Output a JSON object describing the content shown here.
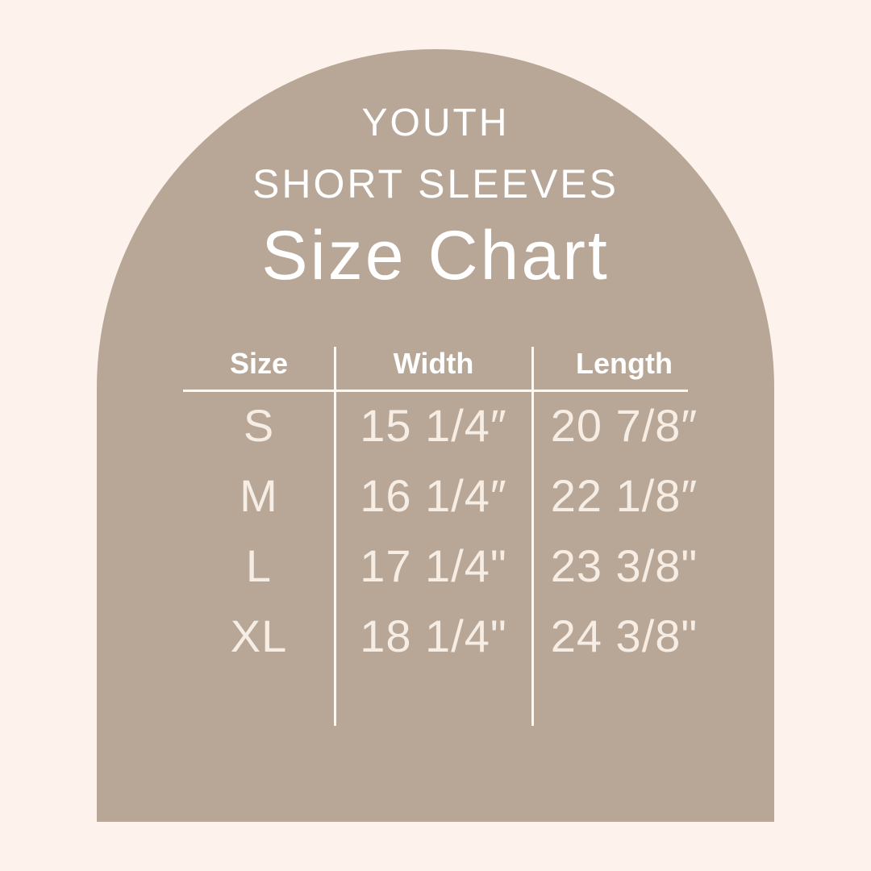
{
  "canvas": {
    "background_color": "#FDF3EC",
    "arch_color": "#B8A797",
    "title_color": "#FFFFFF",
    "value_text_color": "#F6EDE4",
    "divider_color": "#FCF9F4"
  },
  "header": {
    "line1": "YOUTH",
    "line2": "SHORT SLEEVES",
    "line3": "Size Chart"
  },
  "size_table": {
    "columns": [
      "Size",
      "Width",
      "Length"
    ],
    "rows": [
      {
        "size": "S",
        "width": "15 1/4″",
        "length": "20 7/8″"
      },
      {
        "size": "M",
        "width": "16 1/4″",
        "length": "22 1/8″"
      },
      {
        "size": "L",
        "width": "17 1/4\"",
        "length": "23 3/8\""
      },
      {
        "size": "XL",
        "width": "18 1/4\"",
        "length": "24 3/8\""
      }
    ]
  },
  "chart_data": {
    "type": "table",
    "title": "YOUTH SHORT SLEEVES Size Chart",
    "columns": [
      "Size",
      "Width",
      "Length"
    ],
    "rows": [
      [
        "S",
        "15 1/4″",
        "20 7/8″"
      ],
      [
        "M",
        "16 1/4″",
        "22 1/8″"
      ],
      [
        "L",
        "17 1/4\"",
        "23 3/8\""
      ],
      [
        "XL",
        "18 1/4\"",
        "24 3/8\""
      ]
    ],
    "numeric": {
      "sizes": [
        "S",
        "M",
        "L",
        "XL"
      ],
      "width_inches": [
        15.25,
        16.25,
        17.25,
        18.25
      ],
      "length_inches": [
        20.875,
        22.125,
        23.375,
        24.375
      ]
    },
    "layout": {
      "grid": "off",
      "column_dividers": true,
      "header_rule": true
    }
  }
}
